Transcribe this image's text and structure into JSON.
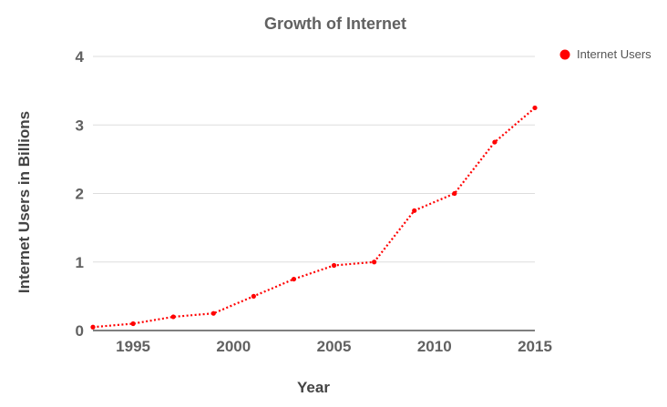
{
  "chart_data": {
    "type": "line",
    "title": "Growth of Internet",
    "xlabel": "Year",
    "ylabel": "Internet Users in Billions",
    "xlim": [
      1993,
      2015
    ],
    "ylim": [
      0,
      4
    ],
    "x_ticks": [
      1995,
      2000,
      2005,
      2010,
      2015
    ],
    "y_ticks": [
      0,
      1,
      2,
      3,
      4
    ],
    "grid": true,
    "legend_position": "top-right",
    "series": [
      {
        "name": "Internet Users",
        "color": "#ff0000",
        "line_style": "dotted",
        "x": [
          1993,
          1995,
          1997,
          1999,
          2001,
          2003,
          2005,
          2007,
          2009,
          2011,
          2013,
          2015
        ],
        "y": [
          0.05,
          0.1,
          0.2,
          0.25,
          0.5,
          0.75,
          0.95,
          1.0,
          1.75,
          2.0,
          2.75,
          3.25
        ]
      }
    ]
  }
}
